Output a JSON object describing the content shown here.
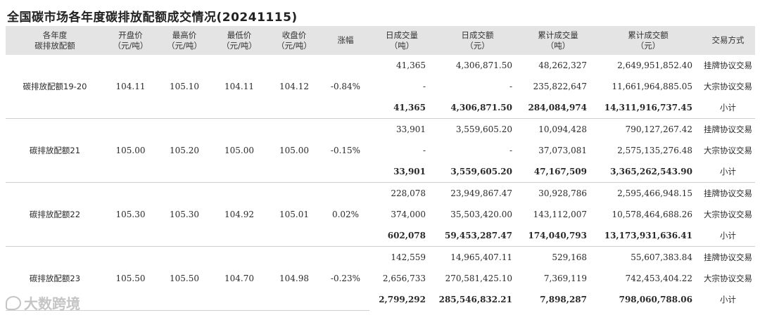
{
  "title": "全国碳市场各年度碳排放配额成交情况(20241115)",
  "headers": [
    [
      "各年度",
      "碳排放配额"
    ],
    [
      "开盘价",
      "（元/吨）"
    ],
    [
      "最高价",
      "（元/吨）"
    ],
    [
      "最低价",
      "（元/吨）"
    ],
    [
      "收盘价",
      "（元/吨）"
    ],
    [
      "涨幅"
    ],
    [
      "日成交量",
      "（吨）"
    ],
    [
      "日成交额",
      "（元）"
    ],
    [
      "累计成交量",
      "（吨）"
    ],
    [
      "累计成交额",
      "（元）"
    ],
    [
      "交易方式"
    ]
  ],
  "groups": [
    {
      "name": "碳排放配额19-20",
      "open": "104.11",
      "high": "105.10",
      "low": "104.11",
      "close": "104.12",
      "change": "-0.84%",
      "rows": [
        {
          "vol": "41,365",
          "amt": "4,306,871.50",
          "cvol": "48,262,327",
          "camt": "2,649,951,852.40",
          "way": "挂牌协议交易"
        },
        {
          "vol": "-",
          "amt": "-",
          "cvol": "235,822,647",
          "camt": "11,661,964,885.05",
          "way": "大宗协议交易"
        },
        {
          "vol": "41,365",
          "amt": "4,306,871.50",
          "cvol": "284,084,974",
          "camt": "14,311,916,737.45",
          "way": "小计"
        }
      ]
    },
    {
      "name": "碳排放配额21",
      "open": "105.00",
      "high": "105.20",
      "low": "105.00",
      "close": "105.00",
      "change": "-0.15%",
      "rows": [
        {
          "vol": "33,901",
          "amt": "3,559,605.20",
          "cvol": "10,094,428",
          "camt": "790,127,267.42",
          "way": "挂牌协议交易"
        },
        {
          "vol": "-",
          "amt": "-",
          "cvol": "37,073,081",
          "camt": "2,575,135,276.48",
          "way": "大宗协议交易"
        },
        {
          "vol": "33,901",
          "amt": "3,559,605.20",
          "cvol": "47,167,509",
          "camt": "3,365,262,543.90",
          "way": "小计"
        }
      ]
    },
    {
      "name": "碳排放配额22",
      "open": "105.30",
      "high": "105.30",
      "low": "104.92",
      "close": "105.01",
      "change": "0.02%",
      "rows": [
        {
          "vol": "228,078",
          "amt": "23,949,867.47",
          "cvol": "30,928,786",
          "camt": "2,595,466,948.15",
          "way": "挂牌协议交易"
        },
        {
          "vol": "374,000",
          "amt": "35,503,420.00",
          "cvol": "143,112,007",
          "camt": "10,578,464,688.26",
          "way": "大宗协议交易"
        },
        {
          "vol": "602,078",
          "amt": "59,453,287.47",
          "cvol": "174,040,793",
          "camt": "13,173,931,636.41",
          "way": "小计"
        }
      ]
    },
    {
      "name": "碳排放配额23",
      "open": "105.50",
      "high": "105.50",
      "low": "104.70",
      "close": "104.98",
      "change": "-0.23%",
      "rows": [
        {
          "vol": "142,559",
          "amt": "14,965,407.11",
          "cvol": "529,168",
          "camt": "55,607,383.84",
          "way": "挂牌协议交易"
        },
        {
          "vol": "2,656,733",
          "amt": "270,581,425.10",
          "cvol": "7,369,119",
          "camt": "742,453,404.22",
          "way": "大宗协议交易"
        },
        {
          "vol": "2,799,292",
          "amt": "285,546,832.21",
          "cvol": "7,898,287",
          "camt": "798,060,788.06",
          "way": "小计"
        }
      ]
    }
  ],
  "watermark": {
    "text": "大数跨境",
    "logo_icon": "speech-bubble-logo-icon"
  }
}
